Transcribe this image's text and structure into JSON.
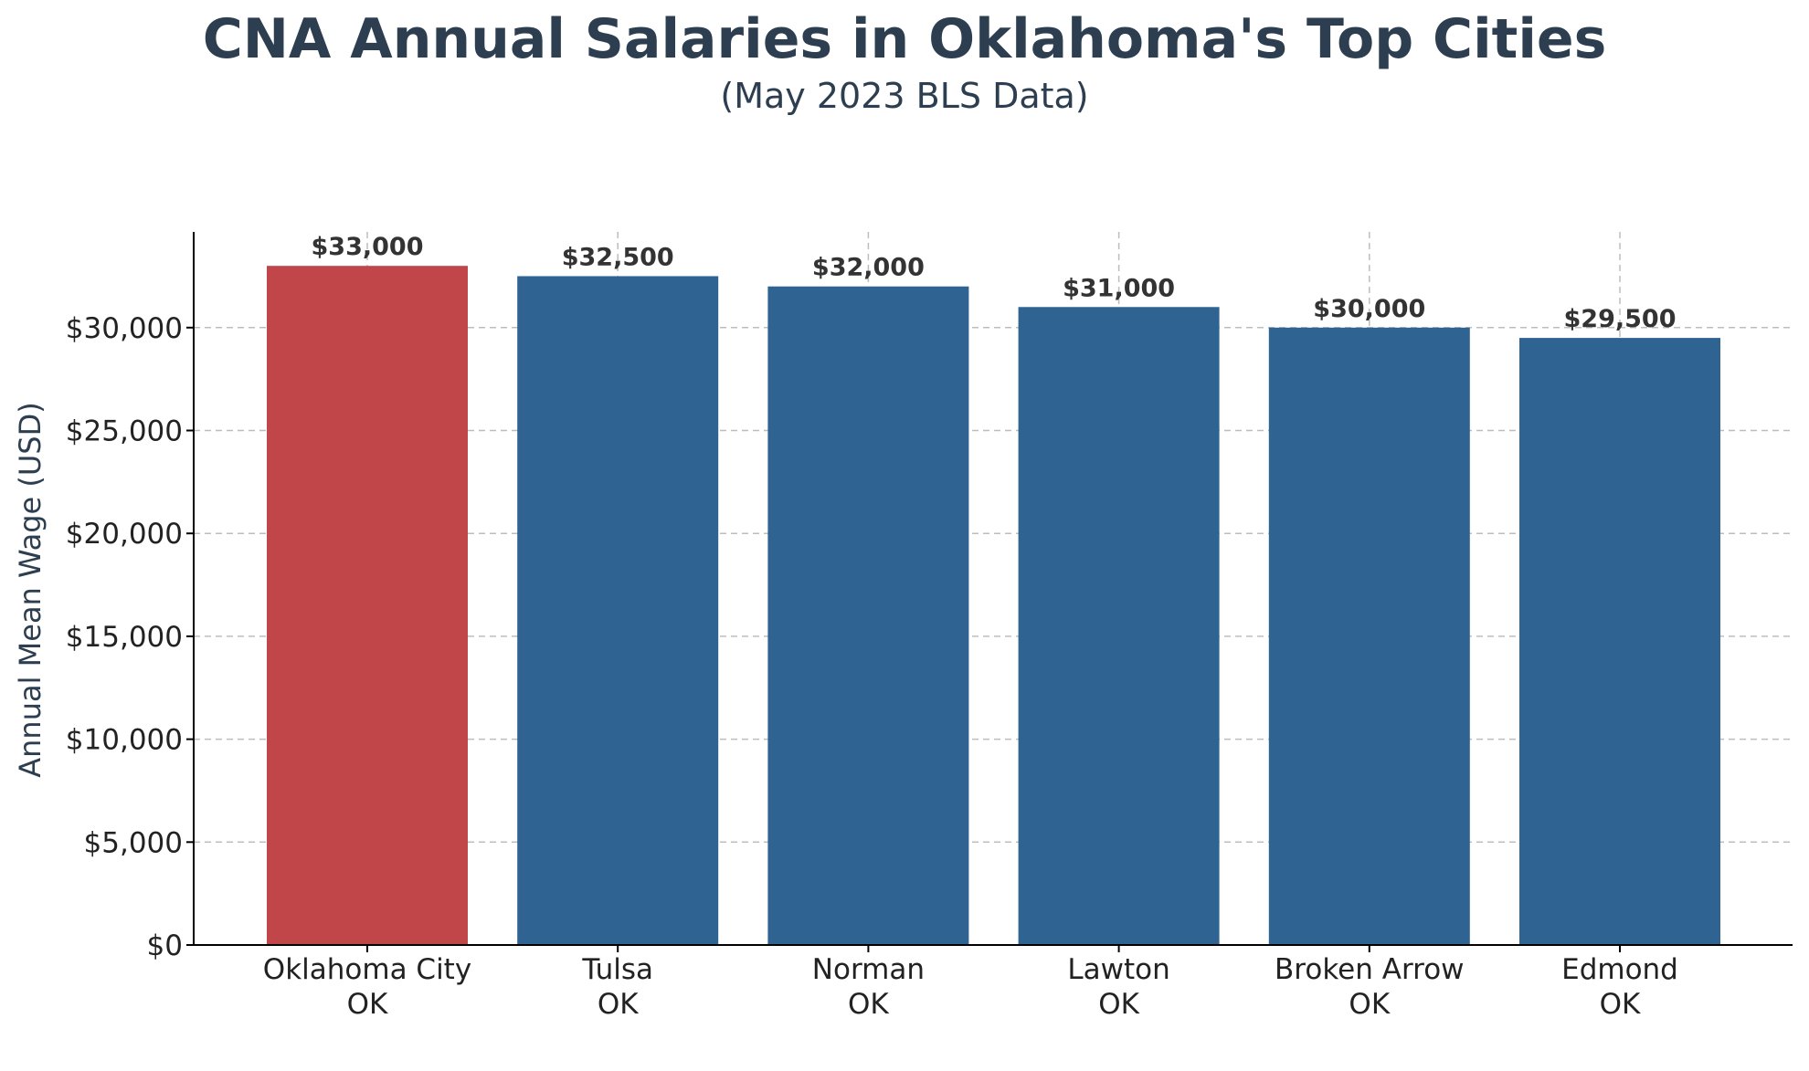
{
  "chart_data": {
    "type": "bar",
    "title": "CNA Annual Salaries in Oklahoma's Top Cities",
    "subtitle": "(May 2023 BLS Data)",
    "xlabel": "",
    "ylabel": "Annual Mean Wage (USD)",
    "categories": [
      [
        "Oklahoma City",
        "OK"
      ],
      [
        "Tulsa",
        "OK"
      ],
      [
        "Norman",
        "OK"
      ],
      [
        "Lawton",
        "OK"
      ],
      [
        "Broken Arrow",
        "OK"
      ],
      [
        "Edmond",
        "OK"
      ]
    ],
    "values": [
      33000,
      32500,
      32000,
      31000,
      30000,
      29500
    ],
    "data_labels": [
      "$33,000",
      "$32,500",
      "$32,000",
      "$31,000",
      "$30,000",
      "$29,500"
    ],
    "yticks": [
      0,
      5000,
      10000,
      15000,
      20000,
      25000,
      30000
    ],
    "ytick_labels": [
      "$0",
      "$5,000",
      "$10,000",
      "$15,000",
      "$20,000",
      "$25,000",
      "$30,000"
    ],
    "ylim": [
      0,
      34650
    ],
    "grid": true,
    "colors": {
      "highlight": "#c0464a",
      "bar": "#2f6391",
      "title": "#2c3e50",
      "grid": "#bdbdbd"
    },
    "highlight_index": 0
  }
}
